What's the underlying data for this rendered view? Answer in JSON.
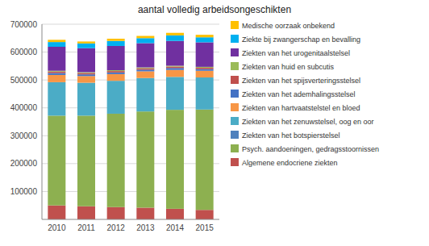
{
  "chart_data": {
    "type": "bar",
    "stacked": true,
    "title": "aantal volledig arbeidsongeschikten",
    "categories": [
      "2010",
      "2011",
      "2012",
      "2013",
      "2014",
      "2015"
    ],
    "series": [
      {
        "name": "Algemene endocriene ziekten",
        "color": "#c0504d",
        "values": [
          50000,
          47000,
          44000,
          42000,
          38000,
          34000
        ]
      },
      {
        "name": "Psych. aandoeningen, gedragsstoornissen",
        "color": "#8db050",
        "values": [
          322000,
          325000,
          335000,
          345000,
          355000,
          360000
        ]
      },
      {
        "name": "Ziekten van het botspierstelsel",
        "color": "#4f81bd",
        "values": [
          0,
          0,
          0,
          0,
          0,
          0
        ]
      },
      {
        "name": "Ziekten van het zenuwstelsel, oog en oor",
        "color": "#4bacc6",
        "values": [
          120000,
          118000,
          118000,
          120000,
          118000,
          115000
        ]
      },
      {
        "name": "Ziekten van hartvaatstelstel en bloed",
        "color": "#f79646",
        "values": [
          26000,
          24000,
          24000,
          24000,
          25000,
          24000
        ]
      },
      {
        "name": "Ziekten van het ademhalingsstelsel",
        "color": "#4472c4",
        "values": [
          7000,
          6000,
          6000,
          6000,
          7000,
          6000
        ]
      },
      {
        "name": "Ziekten van het spijsverteringsstelsel",
        "color": "#c0504d",
        "values": [
          5000,
          5000,
          5000,
          5000,
          5000,
          5000
        ]
      },
      {
        "name": "Ziekten van huid en subcutis",
        "color": "#9bbb59",
        "values": [
          3000,
          3000,
          3000,
          3000,
          3000,
          3000
        ]
      },
      {
        "name": "Ziekten van het urogenitaalstelsel",
        "color": "#7030a0",
        "values": [
          86000,
          86000,
          87000,
          87000,
          89000,
          88000
        ]
      },
      {
        "name": "Ziekte bij zwangerschap en bevalling",
        "color": "#00b0f0",
        "values": [
          17000,
          17000,
          18000,
          18000,
          20000,
          18000
        ]
      },
      {
        "name": "Medische oorzaak onbekend",
        "color": "#ffc000",
        "values": [
          8000,
          7000,
          8000,
          8000,
          9000,
          9000
        ]
      }
    ],
    "ylim": [
      0,
      700000
    ],
    "yticks": [
      100000,
      200000,
      300000,
      400000,
      500000,
      600000,
      700000
    ],
    "grid": true,
    "legend": "right"
  }
}
